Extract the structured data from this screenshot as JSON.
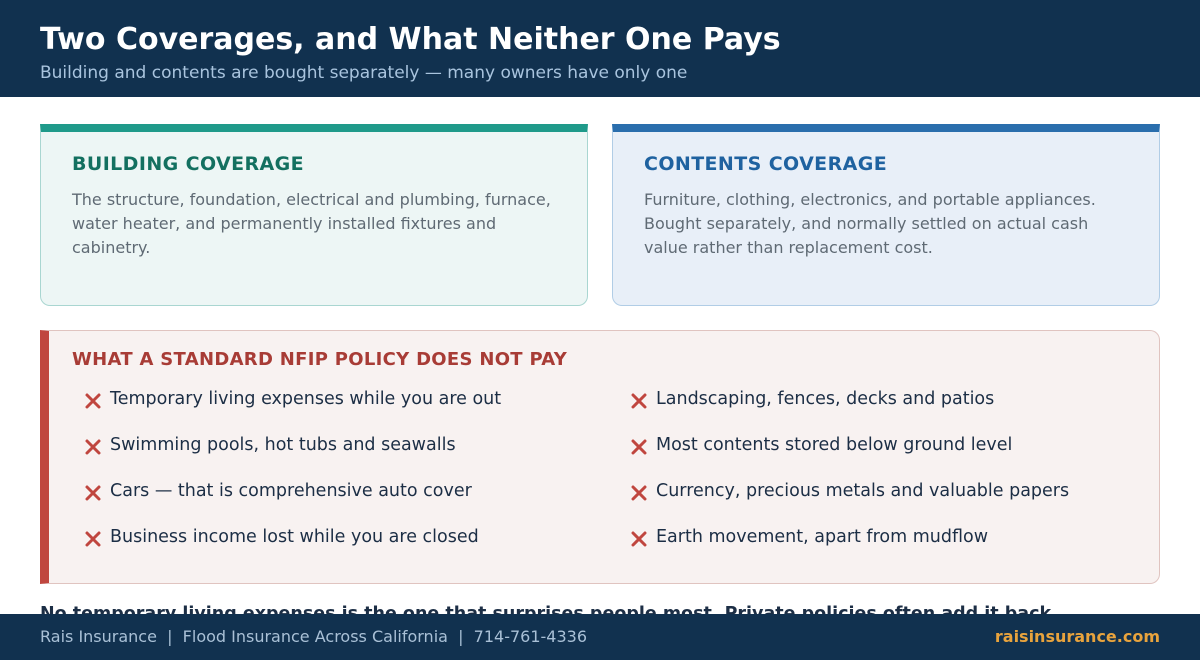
{
  "header": {
    "title": "Two Coverages, and What Neither One Pays",
    "subtitle": "Building and contents are bought separately — many owners have only one"
  },
  "cards": [
    {
      "title": "BUILDING COVERAGE",
      "body": "The structure, foundation, electrical and plumbing, furnace, water heater, and permanently installed fixtures and cabinetry."
    },
    {
      "title": "CONTENTS COVERAGE",
      "body": "Furniture, clothing, electronics, and portable appliances. Bought separately, and normally settled on actual cash value rather than replacement cost."
    }
  ],
  "exclusions": {
    "title": "WHAT A STANDARD NFIP POLICY DOES NOT PAY",
    "items": [
      "Temporary living expenses while you are out",
      "Swimming pools, hot tubs and seawalls",
      "Cars — that is comprehensive auto cover",
      "Business income lost while you are closed",
      "Landscaping, fences, decks and patios",
      "Most contents stored below ground level",
      "Currency, precious metals and valuable papers",
      "Earth movement, apart from mudflow"
    ]
  },
  "note": "No temporary living expenses is the one that surprises people most. Private policies often add it back.",
  "footer": {
    "text": "Rais Insurance  |  Flood Insurance Across California  |  714-761-4336",
    "site": "raisinsurance.com"
  }
}
